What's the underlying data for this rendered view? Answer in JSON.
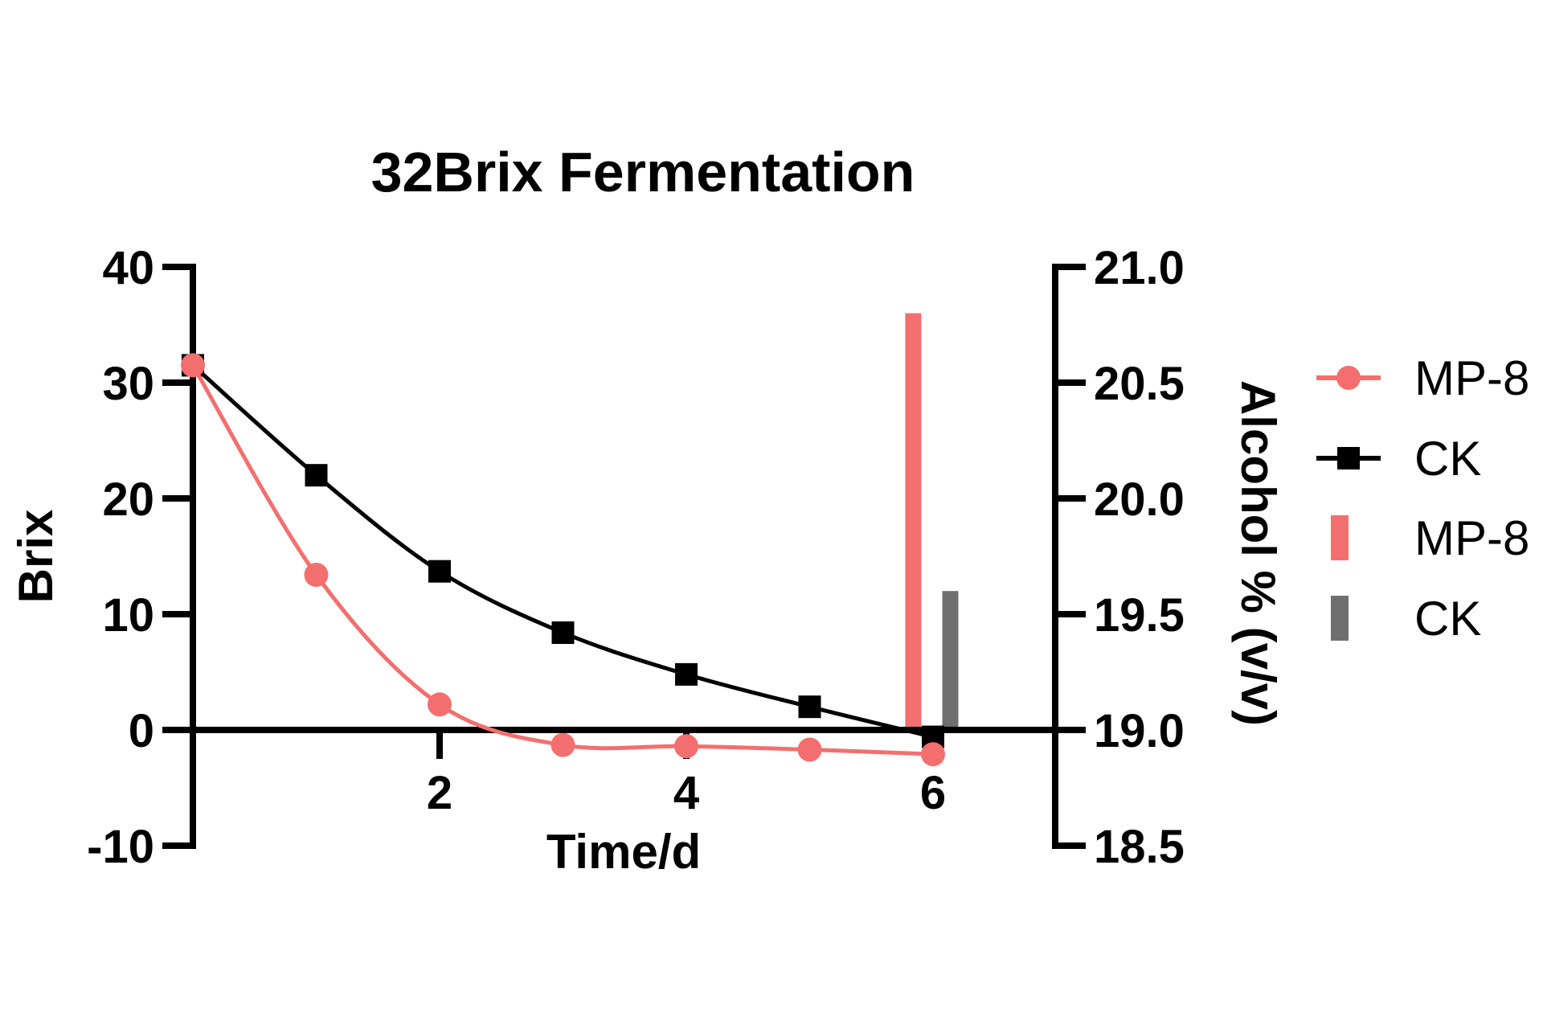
{
  "title": "32Brix Fermentation",
  "axes": {
    "x": {
      "label": "Time/d",
      "range": [
        0,
        7
      ],
      "ticks": [
        {
          "value": 2,
          "label": "2"
        },
        {
          "value": 4,
          "label": "4"
        },
        {
          "value": 6,
          "label": "6"
        }
      ]
    },
    "left": {
      "label": "Brix",
      "range": [
        -10,
        40
      ],
      "ticks": [
        {
          "value": 40,
          "label": "40"
        },
        {
          "value": 30,
          "label": "30"
        },
        {
          "value": 20,
          "label": "20"
        },
        {
          "value": 10,
          "label": "10"
        },
        {
          "value": 0,
          "label": "0"
        },
        {
          "value": -10,
          "label": "-10"
        }
      ]
    },
    "right": {
      "label": "Alcohol % (v/v)",
      "range": [
        18.5,
        21.0
      ],
      "ticks": [
        {
          "value": 21.0,
          "label": "21.0"
        },
        {
          "value": 20.5,
          "label": "20.5"
        },
        {
          "value": 20.0,
          "label": "20.0"
        },
        {
          "value": 19.5,
          "label": "19.5"
        },
        {
          "value": 19.0,
          "label": "19.0"
        },
        {
          "value": 18.5,
          "label": "18.5"
        }
      ]
    }
  },
  "chart_data": {
    "type": "combo-line-bar-dual-axis",
    "title": "32Brix Fermentation",
    "xlabel": "Time/d",
    "ylabel_left": "Brix",
    "ylabel_right": "Alcohol % (v/v)",
    "grid": false,
    "x_axis_drawn_at_brix": 0,
    "x_days": [
      0,
      1,
      2,
      3,
      4,
      5,
      6
    ],
    "series": [
      {
        "name": "MP-8",
        "type": "line",
        "marker": "circle",
        "axis": "left",
        "color": "#F36F6F",
        "values": [
          31.5,
          13.4,
          2.2,
          -1.3,
          -1.4,
          -1.7,
          -2.1
        ]
      },
      {
        "name": "CK",
        "type": "line",
        "marker": "square",
        "axis": "left",
        "color": "#000000",
        "values": [
          31.5,
          22.0,
          13.7,
          8.4,
          4.8,
          2.0,
          -0.6
        ]
      },
      {
        "name": "MP-8",
        "type": "bar",
        "axis": "right",
        "color": "#F36F6F",
        "x": 5.84,
        "value": 20.8
      },
      {
        "name": "CK",
        "type": "bar",
        "axis": "right",
        "color": "#6F6F6F",
        "x": 6.14,
        "value": 19.6
      }
    ]
  },
  "legend": {
    "position": "right",
    "entries": [
      {
        "label": "MP-8",
        "swatch": "line-circle",
        "color": "#F36F6F"
      },
      {
        "label": "CK",
        "swatch": "line-square",
        "color": "#000000"
      },
      {
        "label": "MP-8",
        "swatch": "bar",
        "color": "#F36F6F"
      },
      {
        "label": "CK",
        "swatch": "bar",
        "color": "#6F6F6F"
      }
    ]
  },
  "colors": {
    "mp8": "#F36F6F",
    "ck_line": "#000000",
    "ck_bar": "#6F6F6F",
    "axis": "#000000",
    "background": "#FFFFFF"
  }
}
